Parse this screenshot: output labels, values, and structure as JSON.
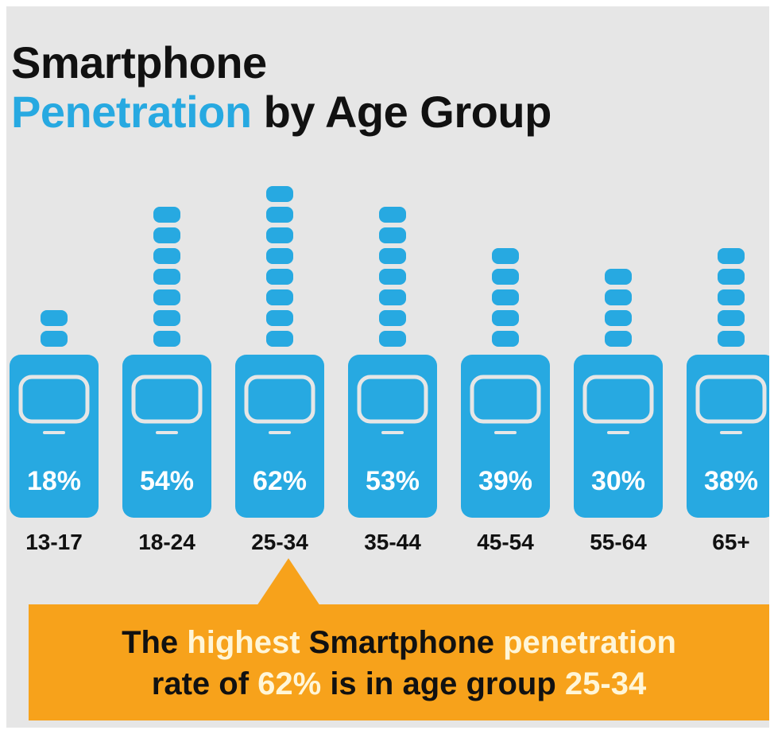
{
  "title": {
    "line1": "Smartphone",
    "line2_accent": "Penetration",
    "line2_rest": " by Age Group"
  },
  "colors": {
    "accent": "#27a9e1",
    "callout": "#f7a21b",
    "background": "#e6e6e6"
  },
  "chart_data": {
    "type": "bar",
    "title": "Smartphone Penetration by Age Group",
    "categories": [
      "13-17",
      "18-24",
      "25-34",
      "35-44",
      "45-54",
      "55-64",
      "65+"
    ],
    "values": [
      18,
      54,
      62,
      53,
      39,
      30,
      38
    ],
    "value_labels": [
      "18%",
      "54%",
      "62%",
      "53%",
      "39%",
      "30%",
      "38%"
    ],
    "unit": "%",
    "grid": false,
    "legend": "none"
  },
  "callout": {
    "p1": "The ",
    "p2": "highest",
    "p3": " Smartphone ",
    "p4": "penetration",
    "p5": "rate of ",
    "p6": "62%",
    "p7": " is in age group ",
    "p8": "25-34"
  }
}
